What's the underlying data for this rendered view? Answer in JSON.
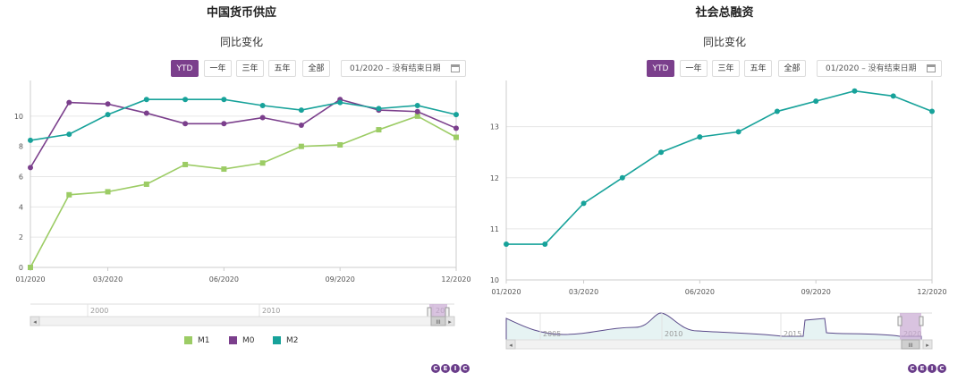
{
  "left": {
    "title": "中国货币供应",
    "subtitle": "同比变化",
    "range_buttons": [
      "YTD",
      "一年",
      "三年",
      "五年",
      "全部"
    ],
    "active_range": "YTD",
    "date_range": "01/2020  –  没有结束日期",
    "navigator_labels": [
      "2000",
      "2010",
      "20"
    ],
    "scroll_grip": "III"
  },
  "right": {
    "title": "社会总融资",
    "subtitle": "同比变化",
    "range_buttons": [
      "YTD",
      "一年",
      "三年",
      "五年",
      "全部"
    ],
    "active_range": "YTD",
    "date_range": "01/2020  –  没有结束日期",
    "navigator_labels": [
      "2005",
      "2010",
      "2015",
      "2020"
    ],
    "scroll_grip": "III"
  },
  "logo_letters": [
    "C",
    "E",
    "I",
    "C"
  ],
  "colors": {
    "M1": "#9ccc65",
    "M0": "#7b3f8c",
    "M2": "#17a29a",
    "accent": "#7b3f8c"
  },
  "chart_data": [
    {
      "type": "line",
      "title": "中国货币供应",
      "subtitle": "同比变化",
      "x": [
        "01/2020",
        "02/2020",
        "03/2020",
        "04/2020",
        "05/2020",
        "06/2020",
        "07/2020",
        "08/2020",
        "09/2020",
        "10/2020",
        "11/2020",
        "12/2020"
      ],
      "x_tick_labels": [
        "01/2020",
        "03/2020",
        "06/2020",
        "09/2020",
        "12/2020"
      ],
      "y_tick_labels": [
        "0",
        "2",
        "4",
        "6",
        "8",
        "10"
      ],
      "ylim": [
        0,
        12
      ],
      "legend_position": "bottom",
      "series": [
        {
          "name": "M1",
          "marker": "square",
          "values": [
            0.0,
            4.8,
            5.0,
            5.5,
            6.8,
            6.5,
            6.9,
            8.0,
            8.1,
            9.1,
            10.0,
            8.6
          ]
        },
        {
          "name": "M0",
          "marker": "circle",
          "values": [
            6.6,
            10.9,
            10.8,
            10.2,
            9.5,
            9.5,
            9.9,
            9.4,
            11.1,
            10.4,
            10.3,
            9.2
          ]
        },
        {
          "name": "M2",
          "marker": "circle",
          "values": [
            8.4,
            8.8,
            10.1,
            11.1,
            11.1,
            11.1,
            10.7,
            10.4,
            10.9,
            10.5,
            10.7,
            10.1
          ]
        }
      ]
    },
    {
      "type": "line",
      "title": "社会总融资",
      "subtitle": "同比变化",
      "x": [
        "01/2020",
        "02/2020",
        "03/2020",
        "04/2020",
        "05/2020",
        "06/2020",
        "07/2020",
        "08/2020",
        "09/2020",
        "10/2020",
        "11/2020",
        "12/2020"
      ],
      "x_tick_labels": [
        "01/2020",
        "03/2020",
        "06/2020",
        "09/2020",
        "12/2020"
      ],
      "y_tick_labels": [
        "10",
        "11",
        "12",
        "13"
      ],
      "ylim": [
        10,
        13.8
      ],
      "series": [
        {
          "marker": "circle",
          "values": [
            10.7,
            10.7,
            11.5,
            12.0,
            12.5,
            12.8,
            12.9,
            13.3,
            13.5,
            13.7,
            13.6,
            13.3
          ]
        }
      ]
    }
  ]
}
